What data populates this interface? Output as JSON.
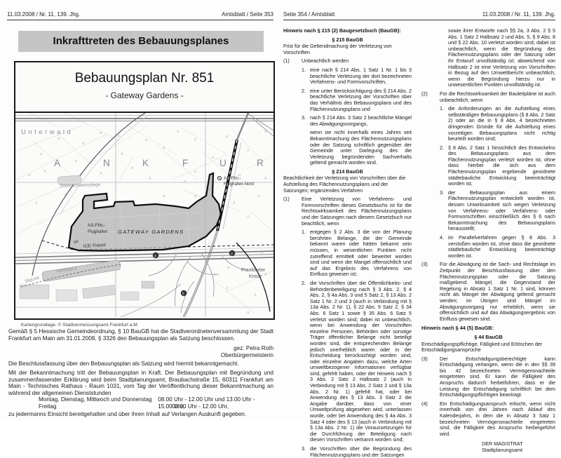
{
  "page1": {
    "header_left": "11.03.2008 / Nr. 11, 139. Jhg.",
    "header_right": "Amtsblatt / Seite 353",
    "title": "Inkrafttreten des Bebauungsplanes",
    "map": {
      "title": "Bebauungsplan Nr. 851",
      "subtitle": "- Gateway Gardens -",
      "caption": "Kartengrundlage: © Stadtvermessungsamt Frankfurt a.M.",
      "symbols": {
        "conifer": "Λ",
        "meadow": "α"
      },
      "labels": {
        "unterwald": "Unterwald",
        "city_letters": [
          "A",
          "N",
          "K",
          "F",
          "U",
          "R"
        ],
        "unterschweinstiege": "Unterschweinstiege",
        "as_nord_line1": "AS-Ffm.-",
        "as_nord_line2": "Flughafen-Nord",
        "as_line1": "AS-Ffm.-",
        "as_line2": "Flughafen",
        "gateway": "GATEWAY GARDENS",
        "str": "Str.",
        "ice": "ICE-Trasse",
        "terminal": "Terminal 2",
        "skyline": "SkyLine",
        "kreuz_line1": "Frankfurter",
        "kreuz_line2": "Kreuz",
        "badge_a3_west": "3",
        "badge_a3_east": "3",
        "badge_a5": "5"
      }
    },
    "para1": "Gemäß § 5 Hessische Gemeindeordnung, § 10 BauGB hat die Stadtverordnetenversammlung der Stadt Frankfurt am Main am 31.01.2008, § 3326 den Bebauungsplan als Satzung beschlossen.",
    "signature_name": "gez. Petra Roth",
    "signature_title": "Oberbürgermeisterin",
    "para2": "Die Beschlussfassung über den Bebauungsplan als Satzung wird hiermit bekanntgemacht.",
    "para3": "Mit der Bekanntmachung tritt der Bebauungsplan in Kraft. Der Bebauungsplan mit Begründung und zusammenfassender Erklärung wird beim Stadtplanungsamt, Braubachstraße 15, 60311 Frankfurt am Main - Technisches Rathaus - Raum 1031, vom Tag der Veröffentlichung dieser Bekanntmachung an während der allgemeinen Dienststunden",
    "hours": [
      {
        "days": "Montag, Dienstag, Mittwoch und Donnerstag",
        "time": "08.00 Uhr - 12.00 Uhr und 13.00 Uhr - 15.00 Uhr,"
      },
      {
        "days": "Freitag",
        "time": "08.00 Uhr - 12.00 Uhr,"
      }
    ],
    "para4": "zu jedermanns Einsicht bereitgehalten und über ihren Inhalt auf Verlangen Auskunft gegeben."
  },
  "page2": {
    "header_left": "Seite 354 / Amtsblatt",
    "header_right": "11.03.2008 / Nr. 11, 139. Jhg.",
    "col1": {
      "hinweis215": "Hinweis nach § 215 (2) Baugesetzbuch (BauGB):",
      "s215_title": "§ 215 BauGB",
      "s215_sub": "Frist für die Geltendmachung der Verletzung von Vorschriften",
      "abs1_num": "(1)",
      "abs1_txt": "Unbeachtlich werden",
      "items1": [
        {
          "num": "1.",
          "text": "eine nach § 214 Abs. 1 Satz 1 Nr. 1 bis 3 beachtliche Verletzung der dort bezeichneten Verfahrens- und Formvorschriften,"
        },
        {
          "num": "2.",
          "text": "eine unter Berücksichtigung des § 214 Abs. 2 beachtliche Verletzung der Vorschriften über das Verhältnis des Bebauungsplans und des Flächennutzungsplans und"
        },
        {
          "num": "3.",
          "text": "nach § 214 Abs. 3 Satz 2 beachtliche Mängel des Abwägungsvorgangs,"
        }
      ],
      "tail1": "wenn sie nicht innerhalb eines Jahres seit Bekanntmachung des Flächennutzungsplans oder der Satzung schriftlich gegenüber der Gemeinde unter Darlegung des die Verletzung begründenden Sachverhalts geltend gemacht worden sind.",
      "s214_title": "§ 214 BauGB",
      "s214_sub": "Beachtlichkeit der Verletzung von Vorschriften über die Aufstellung des Flächennutzungsplans und der Satzungen; ergänzendes Verfahren",
      "abs2_num": "(1)",
      "abs2_txt": "Eine Verletzung von Verfahrens- und Formvorschriften dieses Gesetzbuchs ist für die Rechtswirksamkeit des Flächennutzungsplans und der Satzungen nach diesem Gesetzbuch nur beachtlich, wenn",
      "items2": [
        {
          "num": "1.",
          "text": "entgegen § 2 Abs. 3 die von der Planung berührten Belange, die der Gemeinde bekannt waren oder hätten bekannt sein müssen, in wesentlichen Punkten nicht zutreffend ermittelt oder bewertet worden sind und wenn der Mangel offensichtlich und auf das Ergebnis des Verfahrens von Einfluss gewesen ist;"
        },
        {
          "num": "2.",
          "text": "die Vorschriften über die Öffentlichkeits- und Behördenbeteiligung nach § 3 Abs. 2, § 4 Abs. 2, § 4a Abs. 3 und 5 Satz 2, § 13 Abs. 2 Satz 1 Nr. 2 und 3 (auch in Verbindung mit § 13a Abs. 2 Nr. 1), § 22 Abs. 9 Satz 2, § 34 Abs. 6 Satz 1 sowie § 35 Abs. 6 Satz 5 verletzt worden sind; dabei ist unbeachtlich, wenn bei Anwendung der Vorschriften einzelne Personen, Behörden oder sonstige Träger öffentlicher Belange nicht beteiligt worden sind, die entsprechenden Belange jedoch unerheblich waren oder in der Entscheidung berücksichtigt worden sind, oder einzelne Angaben dazu, welche Arten umweltbezogener Informationen verfügbar sind, gefehlt haben, oder der Hinweis nach § 3 Abs. 2 Satz 2 Halbsatz 2 (auch in Verbindung mit § 13 Abs. 2 Satz 2 und § 13a Abs. 2 Nr. 1) gefehlt hat, oder bei Anwendung des § 13 Abs. 3 Satz 2 die Angabe darüber, dass von einer Umweltprüfung abgesehen wird, unterlassen wurde, oder bei Anwendung des § 4a Abs. 3 Satz 4 oder des § 13 (auch in Verbindung mit § 13a Abs. 2 Nr. 1) die Voraussetzungen für die Durchführung der Beteiligung nach diesen Vorschriften verkannt worden sind;"
        },
        {
          "num": "3.",
          "text": "die Vorschriften über die Begründung des Flächennutzungsplans und der Satzungen"
        }
      ]
    },
    "col2": {
      "cont": "sowie ihrer Entwürfe nach §§ 2a, 3 Abs. 2 § 5 Abs. 1 Satz 2 Halbsatz 2 und Abs. 5, § 9 Abs. 8 und § 22 Abs. 10 verletzt worden sind; dabei ist unbeachtlich, wenn die Begründung des Flächennutzungsplans oder der Satzung oder ihr Entwurf unvollständig ist; abweichend von Halbsatz 2 ist eine Verletzung von Vorschriften in Bezug auf den Umweltbericht unbeachtlich, wenn die Begründung hierzu nur in unwesentlichen Punkten unvollständig ist.",
      "abs2_num": "(2)",
      "abs2_txt": "Für die Rechtswirksamkeit der Bauleitpläne ist auch unbeachtlich, wenn",
      "items": [
        {
          "num": "1.",
          "text": "die Anforderungen an die Aufstellung eines selbständigen Bebauungsplans (§ 8 Abs. 2 Satz 2) oder an die in § 8 Abs. 4 bezeichneten dringenden Gründe für die Aufstellung eines vorzeitigen Bebauungsplans nicht richtig beurteilt worden sind;"
        },
        {
          "num": "2.",
          "text": "§ 8 Abs. 2 Satz 1 hinsichtlich des Entwickelns des Bebauungsplans aus dem Flächennutzungsplan verletzt worden ist, ohne dass hierbei die sich aus dem Flächennutzungsplan ergebende geordnete städtebauliche Entwicklung beeinträchtigt worden ist;"
        },
        {
          "num": "3.",
          "text": "der Bebauungsplan aus einem Flächennutzungsplan entwickelt worden ist, dessen Unwirksamkeit sich wegen Verletzung von Verfahrens- oder Verfahrens- oder Formvorschriften einschließlich des § 6 nach Bekanntmachung des Bebauungsplans herausstellt;"
        },
        {
          "num": "4.",
          "text": "im Parallelverfahren gegen § 8 Abs. 3 verstoßen worden ist, ohne dass die geordnete städtebauliche Entwicklung beeinträchtigt worden ist."
        }
      ],
      "abs3_num": "(3)",
      "abs3_txt": "Für die Abwägung ist die Sach- und Rechtslage im Zeitpunkt der Beschlussfassung über den Flächennutzungsplan oder die Satzung maßgebend. Mängel, die Gegenstand der Regelung in Absatz 1 Satz 1 Nr. 1 sind, können nicht als Mängel der Abwägung geltend gemacht werden; im Übrigen sind Mängel im Abwägungsvorgang nur erheblich, wenn sie offensichtlich und auf das Abwägungsergebnis von Einfluss gewesen sind.",
      "hinweis44": "Hinweis nach § 44 (5) BauGB:",
      "s44_title": "§ 44 BauGB",
      "s44_sub": "Entschädigungspflichtige, Fälligkeit und Erlöschen der Entschädigungsansprüche",
      "abs3b_num": "(3)",
      "abs3b_txt": "Der Entschädigungsberechtigte kann Entschädigung verlangen, wenn die in den §§ 39 bis 42 bezeichneten Vermögensnachteile eingetreten sind. Er kann die Fälligkeit des Anspruchs dadurch herbeiführen, dass er die Leistung der Entschädigung schriftlich bei dem Entschädigungspflichtigen beantragt.",
      "abs4_num": "(4)",
      "abs4_txt": "Ein Entschädigungsanspruch erlischt, wenn nicht innerhalb von drei Jahren nach Ablauf des Kalenderjahrs, in dem die in Absatz 3 Satz 1 bezeichneten Vermögensnachteile eingetreten sind, die Fälligkeit des Anspruchs herbeigeführt wird.",
      "sign_line1": "DER MAGISTRAT",
      "sign_line2": "Stadtplanungsamt"
    }
  }
}
